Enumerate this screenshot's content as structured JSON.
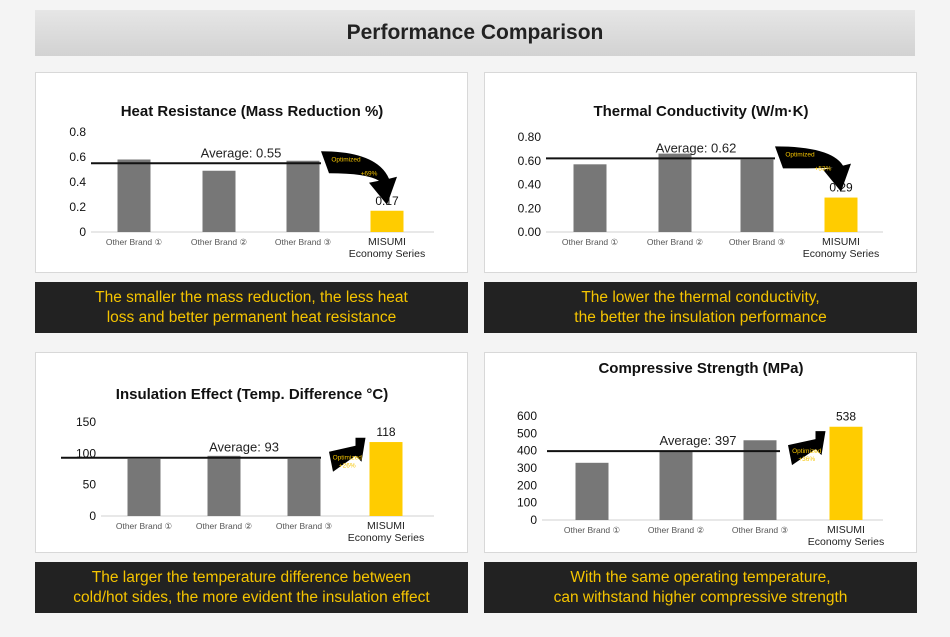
{
  "header": {
    "title": "Performance Comparison"
  },
  "colors": {
    "other_bar": "#777777",
    "misumi_bar": "#ffcc00",
    "caption_bg": "#222222",
    "caption_text": "#f5c400"
  },
  "chart_data": [
    {
      "type": "bar",
      "title": "Heat Resistance (Mass Reduction %)",
      "categories": [
        "Other Brand ①",
        "Other Brand ②",
        "Other Brand ③",
        "MISUMI\nEconomy Series"
      ],
      "values": [
        0.58,
        0.49,
        0.57,
        0.17
      ],
      "data_labels": [
        "",
        "",
        "",
        "0.17"
      ],
      "yticks": [
        "0",
        "0.2",
        "0.4",
        "0.6",
        "0.8"
      ],
      "ylim": [
        0,
        0.8
      ],
      "average": {
        "value": 0.55,
        "label": "Average: 0.55"
      },
      "annotation": {
        "text": "Optimized",
        "change": "+69%",
        "direction": "down"
      },
      "caption": "The smaller the mass reduction, the less heat\nloss and better permanent heat resistance"
    },
    {
      "type": "bar",
      "title": "Thermal Conductivity (W/m·K)",
      "categories": [
        "Other Brand ①",
        "Other Brand ②",
        "Other Brand ③",
        "MISUMI\nEconomy Series"
      ],
      "values": [
        0.57,
        0.66,
        0.61,
        0.29
      ],
      "data_labels": [
        "",
        "",
        "",
        "0.29"
      ],
      "yticks": [
        "0.00",
        "0.20",
        "0.40",
        "0.60",
        "0.80"
      ],
      "ylim": [
        0,
        0.8
      ],
      "average": {
        "value": 0.62,
        "label": "Average: 0.62"
      },
      "annotation": {
        "text": "Optimized",
        "change": "+53%",
        "direction": "down"
      },
      "caption": "The lower the thermal conductivity,\nthe better the insulation performance"
    },
    {
      "type": "bar",
      "title": "Insulation Effect (Temp. Difference °C)",
      "categories": [
        "Other Brand ①",
        "Other Brand ②",
        "Other Brand ③",
        "MISUMI\nEconomy Series"
      ],
      "values": [
        91,
        96,
        91,
        118
      ],
      "data_labels": [
        "",
        "",
        "",
        "118"
      ],
      "yticks": [
        "0",
        "50",
        "100",
        "150"
      ],
      "ylim": [
        0,
        150
      ],
      "average": {
        "value": 93,
        "label": "Average: 93"
      },
      "annotation": {
        "text": "Optimized",
        "change": "+26%",
        "direction": "up"
      },
      "caption": "The larger the temperature difference between\ncold/hot sides, the more evident the insulation effect"
    },
    {
      "type": "bar",
      "title": "Compressive Strength (MPa)",
      "categories": [
        "Other Brand ①",
        "Other Brand ②",
        "Other Brand ③",
        "MISUMI\nEconomy Series"
      ],
      "values": [
        330,
        400,
        460,
        538
      ],
      "data_labels": [
        "",
        "",
        "",
        "538"
      ],
      "yticks": [
        "0",
        "100",
        "200",
        "300",
        "400",
        "500",
        "600"
      ],
      "ylim": [
        0,
        600
      ],
      "average": {
        "value": 397,
        "label": "Average: 397"
      },
      "annotation": {
        "text": "Optimized",
        "change": "+36%",
        "direction": "up"
      },
      "caption": "With the same operating temperature,\ncan withstand higher compressive strength"
    }
  ]
}
